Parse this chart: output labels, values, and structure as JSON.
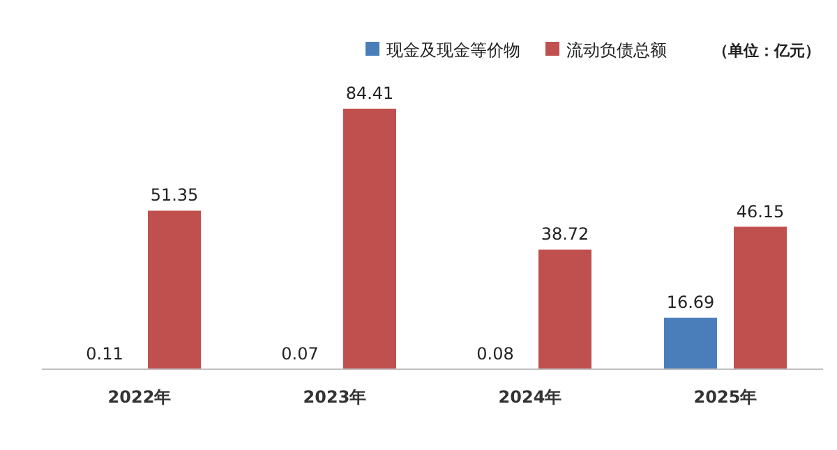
{
  "chart_data": {
    "type": "bar",
    "categories": [
      "2022年",
      "2023年",
      "2024年",
      "2025年"
    ],
    "series": [
      {
        "name": "现金及现金等价物",
        "color": "#4a7ebb",
        "values": [
          0.11,
          0.07,
          0.08,
          16.69
        ]
      },
      {
        "name": "流动负债总额",
        "color": "#c0504d",
        "values": [
          51.35,
          84.41,
          38.72,
          46.15
        ]
      }
    ],
    "data_labels": true,
    "legend": "top right",
    "annotations": [
      "（单位：亿元）"
    ],
    "tick_labels": "x"
  }
}
